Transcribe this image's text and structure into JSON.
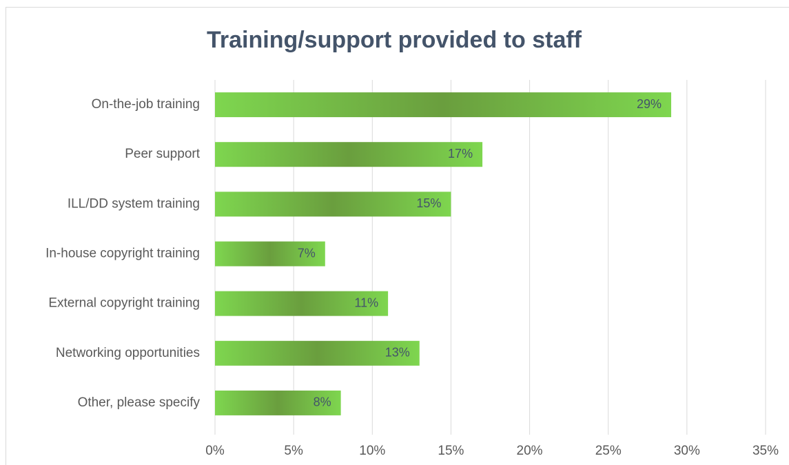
{
  "chart_data": {
    "type": "bar",
    "orientation": "horizontal",
    "title": "Training/support provided to staff",
    "categories": [
      "On-the-job training",
      "Peer support",
      "ILL/DD system training",
      "In-house copyright training",
      "External copyright training",
      "Networking opportunities",
      "Other, please specify"
    ],
    "values": [
      29,
      17,
      15,
      7,
      11,
      13,
      8
    ],
    "value_labels": [
      "29%",
      "17%",
      "15%",
      "7%",
      "11%",
      "13%",
      "8%"
    ],
    "color": "#7ed64f",
    "xlim": [
      0,
      35
    ],
    "xticks": [
      {
        "value": 0,
        "label": "0%"
      },
      {
        "value": 5,
        "label": "5%"
      },
      {
        "value": 10,
        "label": "10%"
      },
      {
        "value": 15,
        "label": "15%"
      },
      {
        "value": 20,
        "label": "20%"
      },
      {
        "value": 25,
        "label": "25%"
      },
      {
        "value": 30,
        "label": "30%"
      },
      {
        "value": 35,
        "label": "35%"
      }
    ],
    "grid": true
  }
}
